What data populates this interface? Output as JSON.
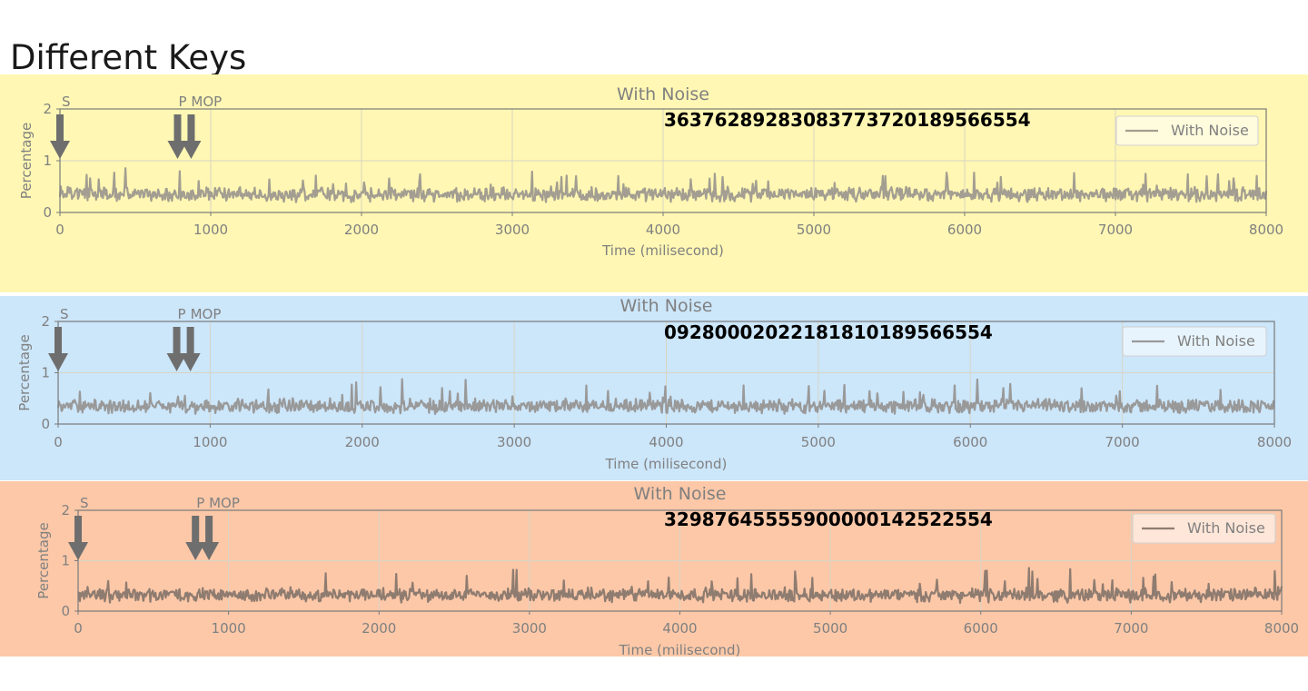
{
  "slide_title": "Different Keys",
  "chart_data": [
    {
      "type": "line",
      "background": "#fff7b3",
      "title": "With Noise",
      "xlabel": "Time (milisecond)",
      "ylabel": "Percentage",
      "xlim": [
        0,
        8000
      ],
      "ylim": [
        0,
        2
      ],
      "x_ticks": [
        "0",
        "1000",
        "2000",
        "3000",
        "4000",
        "5000",
        "6000",
        "7000",
        "8000"
      ],
      "y_ticks": [
        "0",
        "1",
        "2"
      ],
      "grid": true,
      "legend_position": "top-right",
      "series": [
        {
          "name": "With Noise",
          "color": "#a39e91",
          "baseline": 0.35,
          "spread": 0.1
        }
      ],
      "annotations": [
        {
          "label": "S",
          "x": 0
        },
        {
          "label": "P",
          "x": 780
        },
        {
          "label": "MOP",
          "x": 870
        }
      ],
      "key_value": "36376289283083773720189566554"
    },
    {
      "type": "line",
      "background": "#cce6fa",
      "title": "With Noise",
      "xlabel": "Time (milisecond)",
      "ylabel": "Percentage",
      "xlim": [
        0,
        8000
      ],
      "ylim": [
        0,
        2
      ],
      "x_ticks": [
        "0",
        "1000",
        "2000",
        "3000",
        "4000",
        "5000",
        "6000",
        "7000",
        "8000"
      ],
      "y_ticks": [
        "0",
        "1",
        "2"
      ],
      "grid": true,
      "legend_position": "top-right",
      "series": [
        {
          "name": "With Noise",
          "color": "#999999",
          "baseline": 0.35,
          "spread": 0.1
        }
      ],
      "annotations": [
        {
          "label": "S",
          "x": 0
        },
        {
          "label": "P",
          "x": 780
        },
        {
          "label": "MOP",
          "x": 870
        }
      ],
      "key_value": "09280002022181810189566554"
    },
    {
      "type": "line",
      "background": "#fcc8a8",
      "title": "With Noise",
      "xlabel": "Time (milisecond)",
      "ylabel": "Percentage",
      "xlim": [
        0,
        8000
      ],
      "ylim": [
        0,
        2
      ],
      "x_ticks": [
        "0",
        "1000",
        "2000",
        "3000",
        "4000",
        "5000",
        "6000",
        "7000",
        "8000"
      ],
      "y_ticks": [
        "0",
        "1",
        "2"
      ],
      "grid": true,
      "legend_position": "top-right",
      "series": [
        {
          "name": "With Noise",
          "color": "#8f7c70",
          "baseline": 0.32,
          "spread": 0.1
        }
      ],
      "annotations": [
        {
          "label": "S",
          "x": 0
        },
        {
          "label": "P",
          "x": 780
        },
        {
          "label": "MOP",
          "x": 870
        }
      ],
      "key_value": "32987645555900000142522554"
    }
  ]
}
